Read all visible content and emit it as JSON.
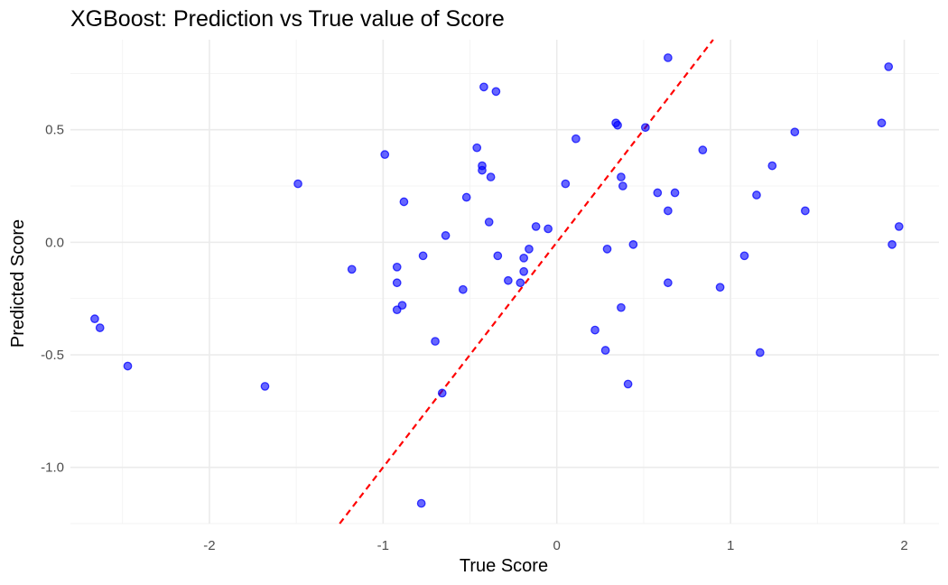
{
  "chart_data": {
    "type": "scatter",
    "title": "XGBoost: Prediction vs True value of Score",
    "xlabel": "True Score",
    "ylabel": "Predicted Score",
    "xlim": [
      -2.8,
      2.2
    ],
    "ylim": [
      -1.25,
      0.9
    ],
    "x_ticks": [
      -2,
      -1,
      0,
      1,
      2
    ],
    "x_tick_labels": [
      "-2",
      "-1",
      "0",
      "1",
      "2"
    ],
    "y_ticks": [
      -1.0,
      -0.5,
      0.0,
      0.5
    ],
    "y_tick_labels": [
      "-1.0",
      "-0.5",
      "0.0",
      "0.5"
    ],
    "grid": true,
    "reference_line": {
      "slope": 1,
      "intercept": 0,
      "style": "dashed",
      "color": "#ff0000"
    },
    "point_color": "#0000ff",
    "point_opacity": 0.6,
    "points": [
      {
        "x": -2.66,
        "y": -0.34
      },
      {
        "x": -2.63,
        "y": -0.38
      },
      {
        "x": -2.47,
        "y": -0.55
      },
      {
        "x": -1.68,
        "y": -0.64
      },
      {
        "x": -1.49,
        "y": 0.26
      },
      {
        "x": -1.18,
        "y": -0.12
      },
      {
        "x": -0.99,
        "y": 0.39
      },
      {
        "x": -0.92,
        "y": -0.11
      },
      {
        "x": -0.92,
        "y": -0.18
      },
      {
        "x": -0.92,
        "y": -0.3
      },
      {
        "x": -0.89,
        "y": -0.28
      },
      {
        "x": -0.88,
        "y": 0.18
      },
      {
        "x": -0.77,
        "y": -0.06
      },
      {
        "x": -0.78,
        "y": -1.16
      },
      {
        "x": -0.7,
        "y": -0.44
      },
      {
        "x": -0.66,
        "y": -0.67
      },
      {
        "x": -0.64,
        "y": 0.03
      },
      {
        "x": -0.54,
        "y": -0.21
      },
      {
        "x": -0.52,
        "y": 0.2
      },
      {
        "x": -0.46,
        "y": 0.42
      },
      {
        "x": -0.43,
        "y": 0.34
      },
      {
        "x": -0.43,
        "y": 0.32
      },
      {
        "x": -0.42,
        "y": 0.69
      },
      {
        "x": -0.39,
        "y": 0.09
      },
      {
        "x": -0.38,
        "y": 0.29
      },
      {
        "x": -0.35,
        "y": 0.67
      },
      {
        "x": -0.34,
        "y": -0.06
      },
      {
        "x": -0.28,
        "y": -0.17
      },
      {
        "x": -0.21,
        "y": -0.18
      },
      {
        "x": -0.19,
        "y": -0.07
      },
      {
        "x": -0.19,
        "y": -0.13
      },
      {
        "x": -0.16,
        "y": -0.03
      },
      {
        "x": -0.12,
        "y": 0.07
      },
      {
        "x": -0.05,
        "y": 0.06
      },
      {
        "x": 0.05,
        "y": 0.26
      },
      {
        "x": 0.11,
        "y": 0.46
      },
      {
        "x": 0.22,
        "y": -0.39
      },
      {
        "x": 0.28,
        "y": -0.48
      },
      {
        "x": 0.29,
        "y": -0.03
      },
      {
        "x": 0.34,
        "y": 0.53
      },
      {
        "x": 0.35,
        "y": 0.52
      },
      {
        "x": 0.37,
        "y": 0.29
      },
      {
        "x": 0.37,
        "y": -0.29
      },
      {
        "x": 0.38,
        "y": 0.25
      },
      {
        "x": 0.41,
        "y": -0.63
      },
      {
        "x": 0.44,
        "y": -0.01
      },
      {
        "x": 0.51,
        "y": 0.51
      },
      {
        "x": 0.58,
        "y": 0.22
      },
      {
        "x": 0.64,
        "y": 0.14
      },
      {
        "x": 0.64,
        "y": -0.18
      },
      {
        "x": 0.64,
        "y": 0.82
      },
      {
        "x": 0.68,
        "y": 0.22
      },
      {
        "x": 0.84,
        "y": 0.41
      },
      {
        "x": 0.94,
        "y": -0.2
      },
      {
        "x": 1.08,
        "y": -0.06
      },
      {
        "x": 1.15,
        "y": 0.21
      },
      {
        "x": 1.17,
        "y": -0.49
      },
      {
        "x": 1.24,
        "y": 0.34
      },
      {
        "x": 1.37,
        "y": 0.49
      },
      {
        "x": 1.43,
        "y": 0.14
      },
      {
        "x": 1.87,
        "y": 0.53
      },
      {
        "x": 1.91,
        "y": 0.78
      },
      {
        "x": 1.93,
        "y": -0.01
      },
      {
        "x": 1.97,
        "y": 0.07
      }
    ]
  }
}
